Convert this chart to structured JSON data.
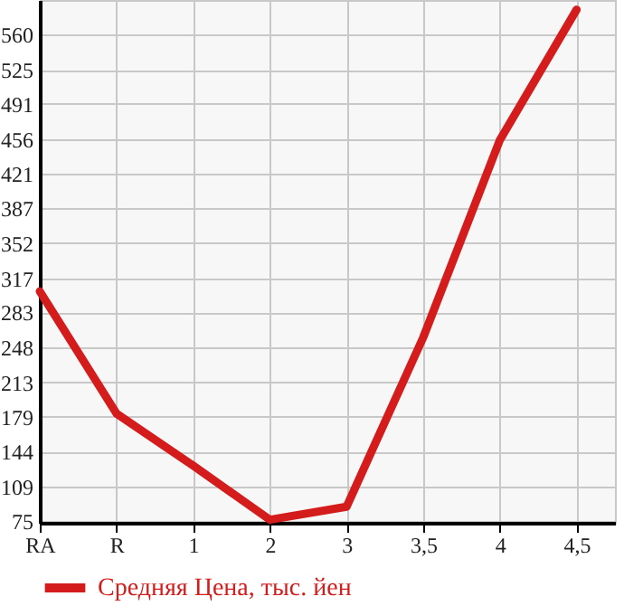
{
  "chart_data": {
    "type": "line",
    "categories": [
      "RA",
      "R",
      "1",
      "2",
      "3",
      "3,5",
      "4",
      "4,5"
    ],
    "series": [
      {
        "name": "Средняя Цена, тыс. йен",
        "color": "#d41c1c",
        "values": [
          304,
          182,
          130,
          76,
          89,
          258,
          455,
          585
        ]
      }
    ],
    "ylim": [
      73,
      594.6
    ],
    "yticks": [
      75,
      109,
      144,
      179,
      213,
      248,
      283,
      317,
      352,
      387,
      421,
      456,
      491,
      525,
      560
    ],
    "grid": true,
    "legend": "bottom left",
    "marker": "none",
    "line_style": "solid"
  }
}
